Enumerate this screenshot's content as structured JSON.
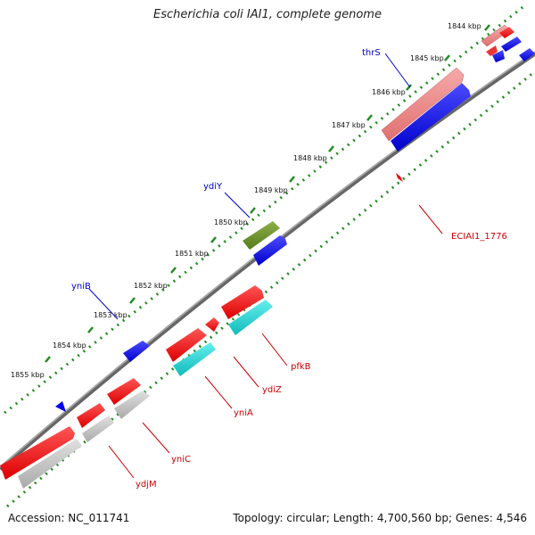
{
  "title": "Escherichia coli IAI1, complete genome",
  "footer": {
    "accession": "Accession: NC_011741",
    "summary": "Topology: circular; Length: 4,700,560 bp; Genes: 4,546"
  },
  "ticks": [
    "1844 kbp",
    "1845 kbp",
    "1846 kbp",
    "1847 kbp",
    "1848 kbp",
    "1849 kbp",
    "1850 kbp",
    "1851 kbp",
    "1852 kbp",
    "1853 kbp",
    "1854 kbp",
    "1855 kbp"
  ],
  "genes": [
    {
      "label": "thrS",
      "color": "#0000cc"
    },
    {
      "label": "ydiY",
      "color": "#0000cc"
    },
    {
      "label": "yniB",
      "color": "#0000cc"
    },
    {
      "label": "ECIAI1_1776",
      "color": "#cc0000"
    },
    {
      "label": "pfkB",
      "color": "#cc0000"
    },
    {
      "label": "ydiZ",
      "color": "#cc0000"
    },
    {
      "label": "yniA",
      "color": "#cc0000"
    },
    {
      "label": "yniC",
      "color": "#cc0000"
    },
    {
      "label": "ydjM",
      "color": "#cc0000"
    }
  ],
  "colors": {
    "cds_forward": "#0000ee",
    "cds_reverse": "#ee0000",
    "pseudo_pink": "#e88080",
    "rna_olive": "#6b8e23",
    "cyan": "#22cccc",
    "gray": "#bbbbbb",
    "backbone": "#888888",
    "tick_green": "#228b22"
  }
}
